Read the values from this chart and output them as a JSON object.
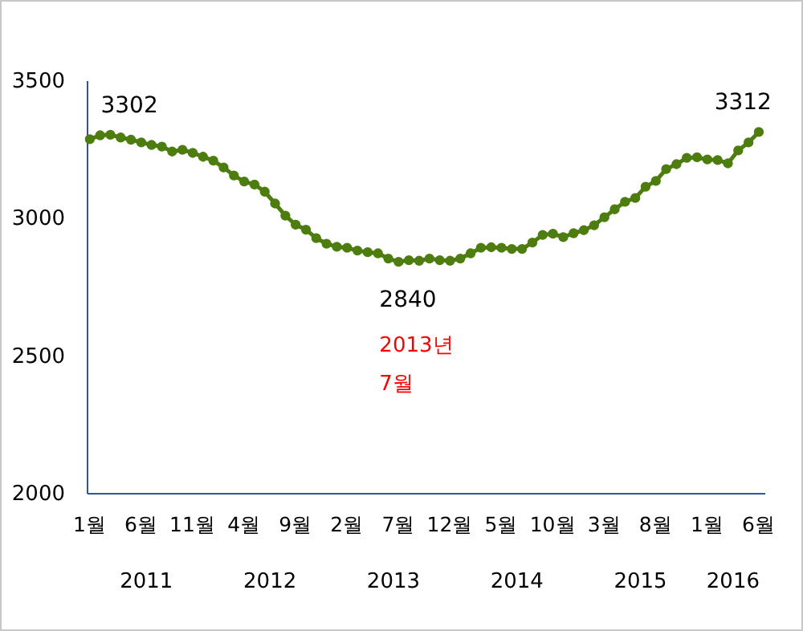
{
  "chart_data": {
    "type": "line",
    "categories": [
      "1월",
      null,
      null,
      null,
      null,
      "6월",
      null,
      null,
      null,
      null,
      "11월",
      null,
      null,
      null,
      null,
      "4월",
      null,
      null,
      null,
      null,
      "9월",
      null,
      null,
      null,
      null,
      "2월",
      null,
      null,
      null,
      null,
      "7월",
      null,
      null,
      null,
      null,
      "12월",
      null,
      null,
      null,
      null,
      "5월",
      null,
      null,
      null,
      null,
      "10월",
      null,
      null,
      null,
      null,
      "3월",
      null,
      null,
      null,
      null,
      "8월",
      null,
      null,
      null,
      null,
      "1월",
      null,
      null,
      null,
      null,
      "6월"
    ],
    "values": [
      3286,
      3300,
      3302,
      3292,
      3284,
      3274,
      3265,
      3259,
      3241,
      3247,
      3236,
      3222,
      3208,
      3183,
      3154,
      3132,
      3121,
      3095,
      3052,
      3008,
      2975,
      2957,
      2926,
      2906,
      2895,
      2891,
      2881,
      2875,
      2871,
      2852,
      2840,
      2846,
      2844,
      2852,
      2846,
      2844,
      2852,
      2871,
      2891,
      2893,
      2891,
      2887,
      2887,
      2910,
      2938,
      2942,
      2930,
      2944,
      2955,
      2973,
      3002,
      3031,
      3058,
      3072,
      3113,
      3134,
      3177,
      3195,
      3218,
      3220,
      3212,
      3210,
      3198,
      3245,
      3274,
      3312
    ],
    "value_labels": [
      null,
      null,
      "3302",
      null,
      null,
      null,
      null,
      null,
      null,
      null,
      null,
      null,
      null,
      null,
      null,
      null,
      null,
      null,
      null,
      null,
      null,
      null,
      null,
      null,
      null,
      null,
      null,
      null,
      null,
      null,
      "2840",
      null,
      null,
      null,
      null,
      null,
      null,
      null,
      null,
      null,
      null,
      null,
      null,
      null,
      null,
      null,
      null,
      null,
      null,
      null,
      null,
      null,
      null,
      null,
      null,
      null,
      null,
      null,
      null,
      null,
      null,
      null,
      null,
      null,
      null,
      "3312"
    ],
    "color": "#4d7c0f",
    "marker": "circle",
    "line_style": "solid",
    "grid": false,
    "ylim": [
      2000,
      3500
    ],
    "yticks": [
      2000,
      2500,
      3000,
      3500
    ],
    "annotations": [
      "2013년\n7월",
      "2011",
      "2012",
      "2013",
      "2014",
      "2015",
      "2016"
    ]
  }
}
